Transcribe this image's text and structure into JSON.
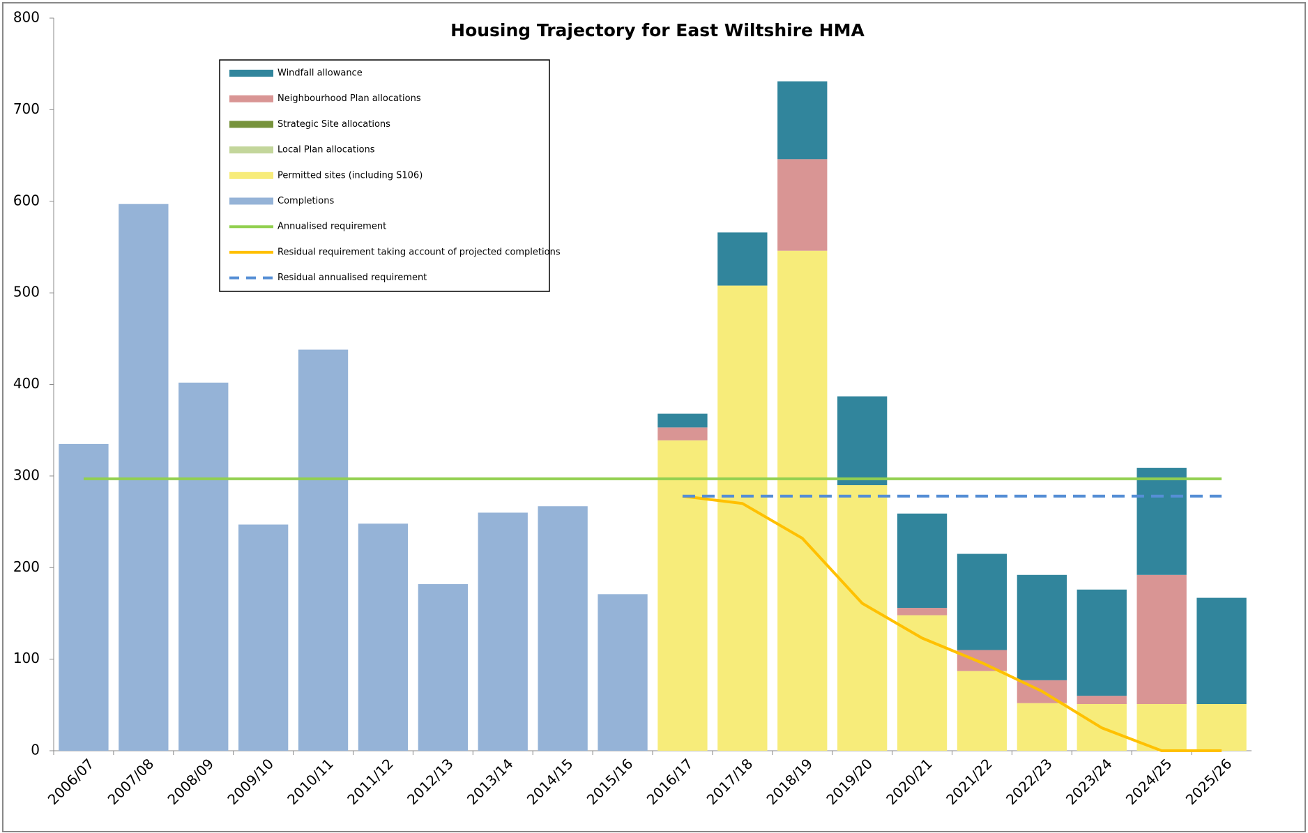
{
  "chart_data": {
    "type": "bar",
    "title": "Housing Trajectory for East Wiltshire HMA",
    "categories": [
      "2006/07",
      "2007/08",
      "2008/09",
      "2009/10",
      "2010/11",
      "2011/12",
      "2012/13",
      "2013/14",
      "2014/15",
      "2015/16",
      "2016/17",
      "2017/18",
      "2018/19",
      "2019/20",
      "2020/21",
      "2021/22",
      "2022/23",
      "2023/24",
      "2024/25",
      "2025/26"
    ],
    "series": [
      {
        "name": "Windfall allowance",
        "color": "#31859c",
        "kind": "bar",
        "values": [
          null,
          null,
          null,
          null,
          null,
          null,
          null,
          null,
          null,
          null,
          15,
          58,
          85,
          97,
          103,
          105,
          115,
          116,
          117,
          116
        ]
      },
      {
        "name": "Neighbourhood Plan allocations",
        "color": "#d99594",
        "kind": "bar",
        "values": [
          null,
          null,
          null,
          null,
          null,
          null,
          null,
          null,
          null,
          null,
          14,
          null,
          100,
          null,
          8,
          23,
          25,
          9,
          141,
          null
        ]
      },
      {
        "name": "Strategic Site allocations",
        "color": "#77933c",
        "kind": "bar",
        "values": [
          null,
          null,
          null,
          null,
          null,
          null,
          null,
          null,
          null,
          null,
          null,
          null,
          null,
          null,
          null,
          null,
          null,
          null,
          null,
          null
        ]
      },
      {
        "name": "Local Plan allocations",
        "color": "#c3d69b",
        "kind": "bar",
        "values": [
          null,
          null,
          null,
          null,
          null,
          null,
          null,
          null,
          null,
          null,
          null,
          null,
          null,
          null,
          null,
          null,
          null,
          null,
          null,
          null
        ]
      },
      {
        "name": "Permitted sites (including S106)",
        "color": "#f7ec7a",
        "kind": "bar",
        "values": [
          null,
          null,
          null,
          null,
          null,
          null,
          null,
          null,
          null,
          null,
          339,
          508,
          546,
          290,
          148,
          87,
          52,
          51,
          51,
          51
        ]
      },
      {
        "name": "Completions",
        "color": "#95b3d7",
        "kind": "bar",
        "values": [
          335,
          597,
          402,
          247,
          438,
          248,
          182,
          260,
          267,
          171,
          null,
          null,
          null,
          null,
          null,
          null,
          null,
          null,
          null,
          null
        ]
      },
      {
        "name": "Annualised requirement",
        "color": "#92d050",
        "kind": "line",
        "values": [
          297,
          297,
          297,
          297,
          297,
          297,
          297,
          297,
          297,
          297,
          297,
          297,
          297,
          297,
          297,
          297,
          297,
          297,
          297,
          297
        ]
      },
      {
        "name": "Residual requirement taking account of projected completions",
        "color": "#ffc000",
        "kind": "line",
        "values": [
          null,
          null,
          null,
          null,
          null,
          null,
          null,
          null,
          null,
          null,
          278,
          270,
          232,
          161,
          123,
          96,
          65,
          25,
          0,
          0
        ]
      },
      {
        "name": "Residual annualised requirement",
        "color": "#558ed5",
        "kind": "line",
        "dashed": true,
        "values": [
          null,
          null,
          null,
          null,
          null,
          null,
          null,
          null,
          null,
          null,
          278,
          278,
          278,
          278,
          278,
          278,
          278,
          278,
          278,
          278
        ]
      }
    ],
    "ylim": [
      0,
      800
    ],
    "yticks": [
      0,
      100,
      200,
      300,
      400,
      500,
      600,
      700,
      800
    ]
  }
}
